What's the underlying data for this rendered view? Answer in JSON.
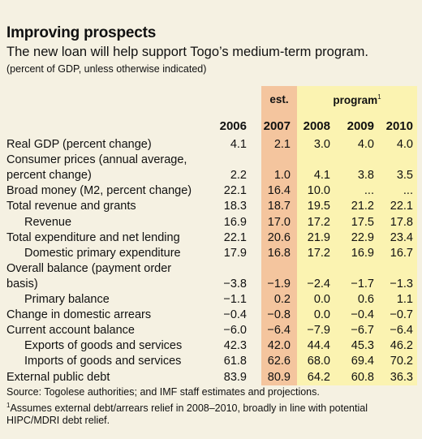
{
  "header": {
    "title": "Improving prospects",
    "subtitle": "The new loan will help support Togo’s medium-term program.",
    "note": "(percent of GDP, unless otherwise indicated)"
  },
  "bands": {
    "est_label": "est.",
    "program_label": "program",
    "program_footnote_mark": "1"
  },
  "years": [
    "2006",
    "2007",
    "2008",
    "2009",
    "2010"
  ],
  "rows": [
    {
      "label": "Real GDP (percent change)",
      "indent": false,
      "values": [
        "4.1",
        "2.1",
        "3.0",
        "4.0",
        "4.0"
      ]
    },
    {
      "label": "Consumer prices (annual average,",
      "indent": false,
      "values": [
        "",
        "",
        "",
        "",
        ""
      ]
    },
    {
      "label": "percent change)",
      "indent": false,
      "values": [
        "2.2",
        "1.0",
        "4.1",
        "3.8",
        "3.5"
      ]
    },
    {
      "label": "Broad money (M2, percent change)",
      "indent": false,
      "values": [
        "22.1",
        "16.4",
        "10.0",
        "...",
        "..."
      ]
    },
    {
      "label": "Total revenue and grants",
      "indent": false,
      "values": [
        "18.3",
        "18.7",
        "19.5",
        "21.2",
        "22.1"
      ]
    },
    {
      "label": "Revenue",
      "indent": true,
      "values": [
        "16.9",
        "17.0",
        "17.2",
        "17.5",
        "17.8"
      ]
    },
    {
      "label": "Total expenditure and net lending",
      "indent": false,
      "values": [
        "22.1",
        "20.6",
        "21.9",
        "22.9",
        "23.4"
      ]
    },
    {
      "label": "Domestic primary expenditure",
      "indent": true,
      "values": [
        "17.9",
        "16.8",
        "17.2",
        "16.9",
        "16.7"
      ]
    },
    {
      "label": "Overall balance (payment order",
      "indent": false,
      "values": [
        "",
        "",
        "",
        "",
        ""
      ]
    },
    {
      "label": "basis)",
      "indent": false,
      "values": [
        "−3.8",
        "−1.9",
        "−2.4",
        "−1.7",
        "−1.3"
      ]
    },
    {
      "label": "Primary balance",
      "indent": true,
      "values": [
        "−1.1",
        "0.2",
        "0.0",
        "0.6",
        "1.1"
      ]
    },
    {
      "label": "Change in domestic arrears",
      "indent": false,
      "values": [
        "−0.4",
        "−0.8",
        "0.0",
        "−0.4",
        "−0.7"
      ]
    },
    {
      "label": "Current account balance",
      "indent": false,
      "values": [
        "−6.0",
        "−6.4",
        "−7.9",
        "−6.7",
        "−6.4"
      ]
    },
    {
      "label": "Exports of goods and services",
      "indent": true,
      "values": [
        "42.3",
        "42.0",
        "44.4",
        "45.3",
        "46.2"
      ]
    },
    {
      "label": "Imports of goods and services",
      "indent": true,
      "values": [
        "61.8",
        "62.6",
        "68.0",
        "69.4",
        "70.2"
      ]
    },
    {
      "label": "External public debt",
      "indent": false,
      "values": [
        "83.9",
        "80.9",
        "64.2",
        "60.8",
        "36.3"
      ]
    }
  ],
  "footer": {
    "source": "Source: Togolese authorities; and IMF staff estimates and projections.",
    "footnote_mark": "1",
    "footnote": "Assumes external debt/arrears relief in 2008–2010, broadly in line with potential HIPC/MDRI debt relief."
  },
  "colors": {
    "background": "#f5f1e2",
    "est_band": "#f4c59e",
    "program_band": "#fbf3b1"
  }
}
